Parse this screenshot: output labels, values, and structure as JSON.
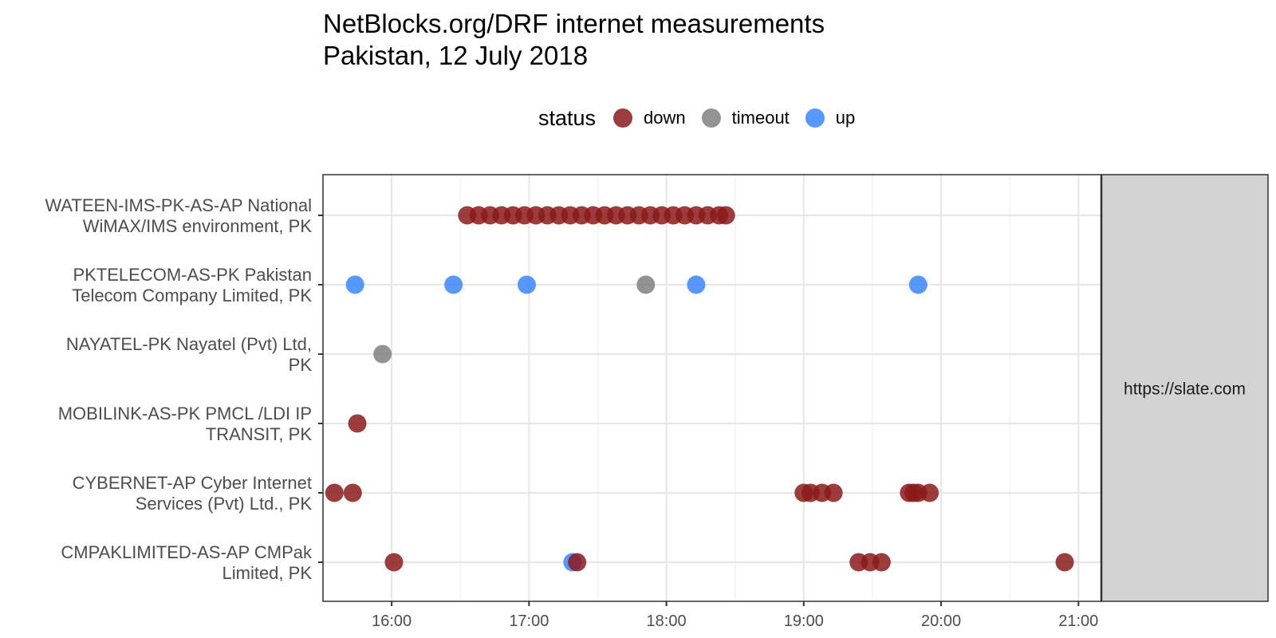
{
  "chart_data": {
    "type": "scatter",
    "title": "NetBlocks.org/DRF internet measurements",
    "subtitle": "Pakistan, 12 July 2018",
    "xlabel": "",
    "ylabel": "",
    "x_ticks": [
      "16:00",
      "17:00",
      "18:00",
      "19:00",
      "20:00",
      "21:00"
    ],
    "xlim": [
      "15:30",
      "21:10"
    ],
    "facet_label": "https://slate.com",
    "grid": true,
    "legend": {
      "title": "status",
      "position": "top",
      "entries": [
        {
          "name": "down",
          "color": "#8B1A1A"
        },
        {
          "name": "timeout",
          "color": "#808080"
        },
        {
          "name": "up",
          "color": "#3A86FF"
        }
      ]
    },
    "rows": [
      {
        "line1": "WATEEN-IMS-PK-AS-AP National",
        "line2": "WiMAX/IMS environment, PK"
      },
      {
        "line1": "PKTELECOM-AS-PK Pakistan",
        "line2": "Telecom Company Limited, PK"
      },
      {
        "line1": "NAYATEL-PK Nayatel (Pvt) Ltd,",
        "line2": "PK"
      },
      {
        "line1": "MOBILINK-AS-PK PMCL /LDI IP",
        "line2": "TRANSIT, PK"
      },
      {
        "line1": "CYBERNET-AP Cyber Internet",
        "line2": "Services (Pvt) Ltd., PK"
      },
      {
        "line1": "CMPAKLIMITED-AS-AP CMPak",
        "line2": "Limited, PK"
      }
    ],
    "points": [
      {
        "row": 0,
        "time": "16:33",
        "status": "down"
      },
      {
        "row": 0,
        "time": "16:38",
        "status": "down"
      },
      {
        "row": 0,
        "time": "16:43",
        "status": "down"
      },
      {
        "row": 0,
        "time": "16:48",
        "status": "down"
      },
      {
        "row": 0,
        "time": "16:53",
        "status": "down"
      },
      {
        "row": 0,
        "time": "16:58",
        "status": "down"
      },
      {
        "row": 0,
        "time": "17:03",
        "status": "down"
      },
      {
        "row": 0,
        "time": "17:08",
        "status": "down"
      },
      {
        "row": 0,
        "time": "17:13",
        "status": "down"
      },
      {
        "row": 0,
        "time": "17:18",
        "status": "down"
      },
      {
        "row": 0,
        "time": "17:23",
        "status": "down"
      },
      {
        "row": 0,
        "time": "17:28",
        "status": "down"
      },
      {
        "row": 0,
        "time": "17:33",
        "status": "down"
      },
      {
        "row": 0,
        "time": "17:38",
        "status": "down"
      },
      {
        "row": 0,
        "time": "17:43",
        "status": "down"
      },
      {
        "row": 0,
        "time": "17:48",
        "status": "down"
      },
      {
        "row": 0,
        "time": "17:53",
        "status": "down"
      },
      {
        "row": 0,
        "time": "17:58",
        "status": "down"
      },
      {
        "row": 0,
        "time": "18:03",
        "status": "down"
      },
      {
        "row": 0,
        "time": "18:08",
        "status": "down"
      },
      {
        "row": 0,
        "time": "18:13",
        "status": "down"
      },
      {
        "row": 0,
        "time": "18:18",
        "status": "down"
      },
      {
        "row": 0,
        "time": "18:23",
        "status": "down"
      },
      {
        "row": 0,
        "time": "18:26",
        "status": "down"
      },
      {
        "row": 1,
        "time": "15:44",
        "status": "up"
      },
      {
        "row": 1,
        "time": "16:27",
        "status": "up"
      },
      {
        "row": 1,
        "time": "16:59",
        "status": "up"
      },
      {
        "row": 1,
        "time": "17:51",
        "status": "timeout"
      },
      {
        "row": 1,
        "time": "18:13",
        "status": "up"
      },
      {
        "row": 1,
        "time": "19:50",
        "status": "up"
      },
      {
        "row": 2,
        "time": "15:56",
        "status": "timeout"
      },
      {
        "row": 3,
        "time": "15:45",
        "status": "down"
      },
      {
        "row": 4,
        "time": "15:35",
        "status": "down"
      },
      {
        "row": 4,
        "time": "15:43",
        "status": "down"
      },
      {
        "row": 4,
        "time": "19:00",
        "status": "down"
      },
      {
        "row": 4,
        "time": "19:03",
        "status": "down"
      },
      {
        "row": 4,
        "time": "19:08",
        "status": "down"
      },
      {
        "row": 4,
        "time": "19:13",
        "status": "down"
      },
      {
        "row": 4,
        "time": "19:46",
        "status": "down"
      },
      {
        "row": 4,
        "time": "19:48",
        "status": "down"
      },
      {
        "row": 4,
        "time": "19:50",
        "status": "down"
      },
      {
        "row": 4,
        "time": "19:55",
        "status": "down"
      },
      {
        "row": 5,
        "time": "16:01",
        "status": "down"
      },
      {
        "row": 5,
        "time": "17:19",
        "status": "up"
      },
      {
        "row": 5,
        "time": "17:21",
        "status": "down"
      },
      {
        "row": 5,
        "time": "19:24",
        "status": "down"
      },
      {
        "row": 5,
        "time": "19:29",
        "status": "down"
      },
      {
        "row": 5,
        "time": "19:34",
        "status": "down"
      },
      {
        "row": 5,
        "time": "20:54",
        "status": "down"
      }
    ]
  }
}
